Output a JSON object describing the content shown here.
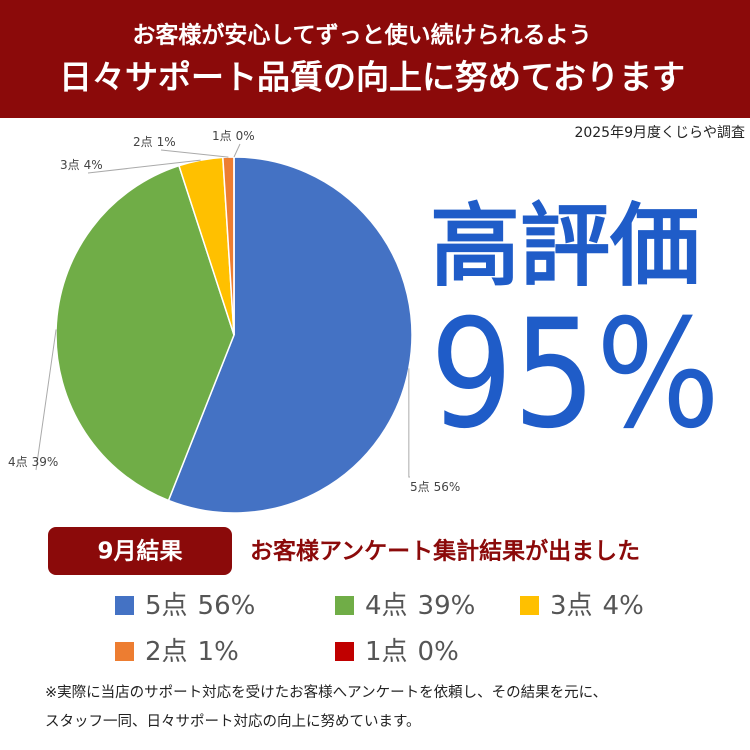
{
  "header": {
    "line1": "お客様が安心してずっと使い続けられるよう",
    "line2": "日々サポート品質の向上に努めております"
  },
  "survey_note": "2025年9月度くじらや調査",
  "headline": "高評価",
  "rating": "95%",
  "badge": "9月結果",
  "results_title": "お客様アンケート集計結果が出ました",
  "footnote": {
    "line1": "※実際に当店のサポート対応を受けたお客様へアンケートを依頼し、その結果を元に、",
    "line2": "スタッフ一同、日々サポート対応の向上に努めています。"
  },
  "chart_data": {
    "type": "pie",
    "categories": [
      "5点",
      "4点",
      "3点",
      "2点",
      "1点"
    ],
    "values": [
      56,
      39,
      4,
      1,
      0
    ],
    "value_labels": [
      "56%",
      "39%",
      "4%",
      "1%",
      "0%"
    ],
    "colors": [
      "#4472c4",
      "#70ad47",
      "#ffc000",
      "#ed7d31",
      "#c00000"
    ]
  }
}
